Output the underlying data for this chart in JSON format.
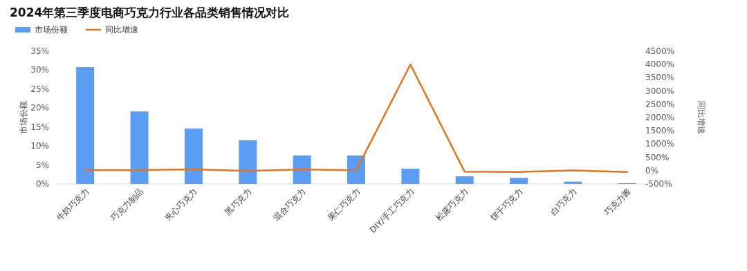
{
  "chart_data": {
    "type": "bar",
    "title": "2024年第三季度电商巧克力行业各品类销售情况对比",
    "categories": [
      "牛奶巧克力",
      "巧克力制品",
      "夹心巧克力",
      "黑巧克力",
      "混合巧克力",
      "果仁巧克力",
      "DIY/手工巧克力",
      "松露巧克力",
      "饼干巧克力",
      "白巧克力",
      "巧克力酱"
    ],
    "series": [
      {
        "name": "市场份额",
        "color": "#5b9df5",
        "values": [
          30.8,
          19.1,
          14.6,
          11.5,
          7.5,
          7.5,
          4.0,
          2.0,
          1.6,
          0.6,
          0.2
        ]
      },
      {
        "name": "同比增速",
        "type": "line",
        "axis": "y2",
        "color": "#e2731f",
        "values": [
          20,
          20,
          50,
          -10,
          50,
          10,
          4000,
          -40,
          -50,
          10,
          -50
        ]
      }
    ],
    "ylabel": "市场份额",
    "y2label": "同比增速",
    "ylim": [
      0,
      35
    ],
    "yticks": [
      {
        "value": 0,
        "label": "0%"
      },
      {
        "value": 5,
        "label": "5%"
      },
      {
        "value": 10,
        "label": "10%"
      },
      {
        "value": 15,
        "label": "15%"
      },
      {
        "value": 20,
        "label": "20%"
      },
      {
        "value": 25,
        "label": "25%"
      },
      {
        "value": 30,
        "label": "30%"
      },
      {
        "value": 35,
        "label": "35%"
      }
    ],
    "y2lim": [
      -500,
      4500
    ],
    "y2ticks": [
      {
        "value": -500,
        "label": "-500%"
      },
      {
        "value": 0,
        "label": "0%"
      },
      {
        "value": 500,
        "label": "500%"
      },
      {
        "value": 1000,
        "label": "1000%"
      },
      {
        "value": 1500,
        "label": "1500%"
      },
      {
        "value": 2000,
        "label": "2000%"
      },
      {
        "value": 2500,
        "label": "2500%"
      },
      {
        "value": 3000,
        "label": "3000%"
      },
      {
        "value": 3500,
        "label": "3500%"
      },
      {
        "value": 4000,
        "label": "4000%"
      },
      {
        "value": 4500,
        "label": "4500%"
      }
    ],
    "legend": "top left",
    "grid": false
  }
}
